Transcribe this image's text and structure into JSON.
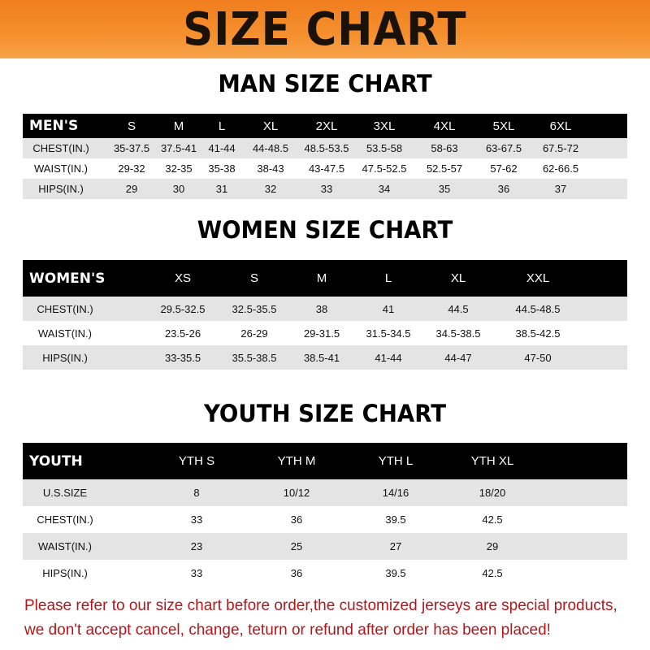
{
  "banner_title": "SIZE CHART",
  "men": {
    "title": "MAN SIZE CHART",
    "header": [
      "MEN'S",
      "S",
      "M",
      "L",
      "XL",
      "2XL",
      "3XL",
      "4XL",
      "5XL",
      "6XL"
    ],
    "rows": [
      [
        "CHEST(IN.)",
        "35-37.5",
        "37.5-41",
        "41-44",
        "44-48.5",
        "48.5-53.5",
        "53.5-58",
        "58-63",
        "63-67.5",
        "67.5-72"
      ],
      [
        "WAIST(IN.)",
        "29-32",
        "32-35",
        "35-38",
        "38-43",
        "43-47.5",
        "47.5-52.5",
        "52.5-57",
        "57-62",
        "62-66.5"
      ],
      [
        "HIPS(IN.)",
        "29",
        "30",
        "31",
        "32",
        "33",
        "34",
        "35",
        "36",
        "37"
      ]
    ]
  },
  "women": {
    "title": "WOMEN SIZE CHART",
    "header": [
      "WOMEN'S",
      "XS",
      "S",
      "M",
      "L",
      "XL",
      "XXL"
    ],
    "rows": [
      [
        "CHEST(IN.)",
        "29.5-32.5",
        "32.5-35.5",
        "38",
        "41",
        "44.5",
        "44.5-48.5"
      ],
      [
        "WAIST(IN.)",
        "23.5-26",
        "26-29",
        "29-31.5",
        "31.5-34.5",
        "34.5-38.5",
        "38.5-42.5"
      ],
      [
        "HIPS(IN.)",
        "33-35.5",
        "35.5-38.5",
        "38.5-41",
        "41-44",
        "44-47",
        "47-50"
      ]
    ]
  },
  "youth": {
    "title": "YOUTH SIZE CHART",
    "header": [
      "YOUTH",
      "YTH S",
      "YTH M",
      "YTH L",
      "YTH XL"
    ],
    "rows": [
      [
        "U.S.SIZE",
        "8",
        "10/12",
        "14/16",
        "18/20"
      ],
      [
        "CHEST(IN.)",
        "33",
        "36",
        "39.5",
        "42.5"
      ],
      [
        "WAIST(IN.)",
        "23",
        "25",
        "27",
        "29"
      ],
      [
        "HIPS(IN.)",
        "33",
        "36",
        "39.5",
        "42.5"
      ]
    ]
  },
  "notice": {
    "line1": "Please refer to our size chart before order,the customized jerseys are special products,",
    "line2": "we don't accept cancel, change, teturn or refund after order has been placed!"
  },
  "colors": {
    "banner": "#f5902e",
    "header_row": "#000000",
    "stripe": "#e4e4e4",
    "notice": "#b5161b"
  }
}
